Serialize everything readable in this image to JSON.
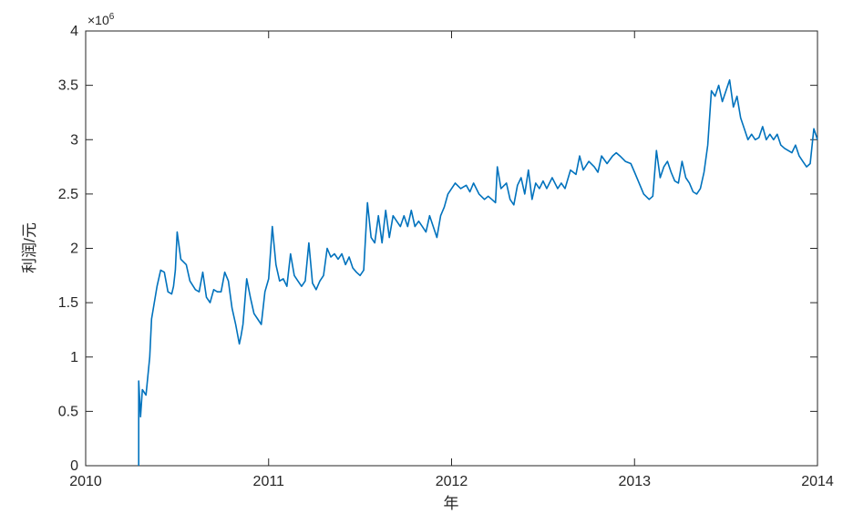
{
  "chart_data": {
    "type": "line",
    "xlabel": "年",
    "ylabel": "利润/元",
    "y_exponent": "×10",
    "y_exponent_power": "6",
    "xlim": [
      2010,
      2014
    ],
    "ylim": [
      0,
      4
    ],
    "x_ticks": [
      "2010",
      "2011",
      "2012",
      "2013",
      "2014"
    ],
    "y_ticks": [
      "0",
      "0.5",
      "1",
      "1.5",
      "2",
      "2.5",
      "3",
      "3.5",
      "4"
    ],
    "line_color": "#0072BD",
    "grid": false,
    "series": [
      {
        "x": [
          2010.29,
          2010.29,
          2010.3,
          2010.31,
          2010.33,
          2010.35,
          2010.36,
          2010.37,
          2010.39,
          2010.41,
          2010.43,
          2010.45,
          2010.47,
          2010.48,
          2010.49,
          2010.5,
          2010.52,
          2010.55,
          2010.57,
          2010.6,
          2010.62,
          2010.64,
          2010.66,
          2010.68,
          2010.7,
          2010.72,
          2010.74,
          2010.76,
          2010.78,
          2010.8,
          2010.82,
          2010.84,
          2010.85,
          2010.86,
          2010.88,
          2010.9,
          2010.92,
          2010.94,
          2010.96,
          2010.98,
          2011.0,
          2011.02,
          2011.04,
          2011.06,
          2011.08,
          2011.1,
          2011.12,
          2011.14,
          2011.16,
          2011.18,
          2011.2,
          2011.22,
          2011.24,
          2011.26,
          2011.28,
          2011.3,
          2011.32,
          2011.34,
          2011.36,
          2011.38,
          2011.4,
          2011.42,
          2011.44,
          2011.46,
          2011.48,
          2011.5,
          2011.52,
          2011.54,
          2011.56,
          2011.58,
          2011.6,
          2011.62,
          2011.64,
          2011.66,
          2011.68,
          2011.7,
          2011.72,
          2011.74,
          2011.76,
          2011.78,
          2011.8,
          2011.82,
          2011.84,
          2011.86,
          2011.88,
          2011.9,
          2011.92,
          2011.94,
          2011.96,
          2011.98,
          2012.0,
          2012.02,
          2012.05,
          2012.08,
          2012.1,
          2012.12,
          2012.15,
          2012.18,
          2012.2,
          2012.22,
          2012.24,
          2012.25,
          2012.27,
          2012.3,
          2012.32,
          2012.34,
          2012.36,
          2012.38,
          2012.4,
          2012.42,
          2012.44,
          2012.46,
          2012.48,
          2012.5,
          2012.52,
          2012.55,
          2012.58,
          2012.6,
          2012.62,
          2012.65,
          2012.68,
          2012.7,
          2012.72,
          2012.75,
          2012.78,
          2012.8,
          2012.82,
          2012.85,
          2012.88,
          2012.9,
          2012.92,
          2012.95,
          2012.98,
          2013.0,
          2013.02,
          2013.05,
          2013.08,
          2013.1,
          2013.12,
          2013.14,
          2013.16,
          2013.18,
          2013.2,
          2013.22,
          2013.24,
          2013.26,
          2013.28,
          2013.3,
          2013.32,
          2013.34,
          2013.36,
          2013.38,
          2013.4,
          2013.42,
          2013.44,
          2013.46,
          2013.48,
          2013.5,
          2013.52,
          2013.54,
          2013.56,
          2013.58,
          2013.6,
          2013.62,
          2013.64,
          2013.66,
          2013.68,
          2013.7,
          2013.72,
          2013.74,
          2013.76,
          2013.78,
          2013.8,
          2013.82,
          2013.84,
          2013.86,
          2013.88,
          2013.9,
          2013.92,
          2013.94,
          2013.96,
          2013.98,
          2014.0
        ],
        "y": [
          0.0,
          0.78,
          0.45,
          0.7,
          0.65,
          1.0,
          1.35,
          1.45,
          1.65,
          1.8,
          1.78,
          1.6,
          1.58,
          1.65,
          1.8,
          2.15,
          1.9,
          1.85,
          1.7,
          1.62,
          1.6,
          1.78,
          1.55,
          1.5,
          1.62,
          1.6,
          1.6,
          1.78,
          1.7,
          1.45,
          1.3,
          1.12,
          1.2,
          1.3,
          1.72,
          1.55,
          1.4,
          1.35,
          1.3,
          1.6,
          1.72,
          2.2,
          1.85,
          1.7,
          1.72,
          1.65,
          1.95,
          1.75,
          1.7,
          1.65,
          1.7,
          2.05,
          1.68,
          1.62,
          1.7,
          1.75,
          2.0,
          1.92,
          1.95,
          1.9,
          1.95,
          1.85,
          1.92,
          1.82,
          1.78,
          1.75,
          1.8,
          2.42,
          2.1,
          2.05,
          2.3,
          2.05,
          2.35,
          2.1,
          2.3,
          2.25,
          2.2,
          2.3,
          2.2,
          2.35,
          2.2,
          2.25,
          2.2,
          2.15,
          2.3,
          2.2,
          2.1,
          2.3,
          2.38,
          2.5,
          2.55,
          2.6,
          2.55,
          2.58,
          2.52,
          2.6,
          2.5,
          2.45,
          2.48,
          2.45,
          2.42,
          2.75,
          2.55,
          2.6,
          2.45,
          2.4,
          2.58,
          2.65,
          2.5,
          2.72,
          2.45,
          2.6,
          2.55,
          2.62,
          2.55,
          2.65,
          2.55,
          2.6,
          2.55,
          2.72,
          2.68,
          2.85,
          2.72,
          2.8,
          2.75,
          2.7,
          2.85,
          2.78,
          2.85,
          2.88,
          2.85,
          2.8,
          2.78,
          2.7,
          2.62,
          2.5,
          2.45,
          2.48,
          2.9,
          2.65,
          2.75,
          2.8,
          2.7,
          2.62,
          2.6,
          2.8,
          2.65,
          2.6,
          2.52,
          2.5,
          2.55,
          2.7,
          2.95,
          3.45,
          3.4,
          3.5,
          3.35,
          3.45,
          3.55,
          3.3,
          3.4,
          3.2,
          3.1,
          3.0,
          3.05,
          3.0,
          3.02,
          3.12,
          3.0,
          3.05,
          3.0,
          3.05,
          2.95,
          2.92,
          2.9,
          2.88,
          2.95,
          2.85,
          2.8,
          2.75,
          2.78,
          3.1,
          3.0
        ]
      }
    ]
  }
}
